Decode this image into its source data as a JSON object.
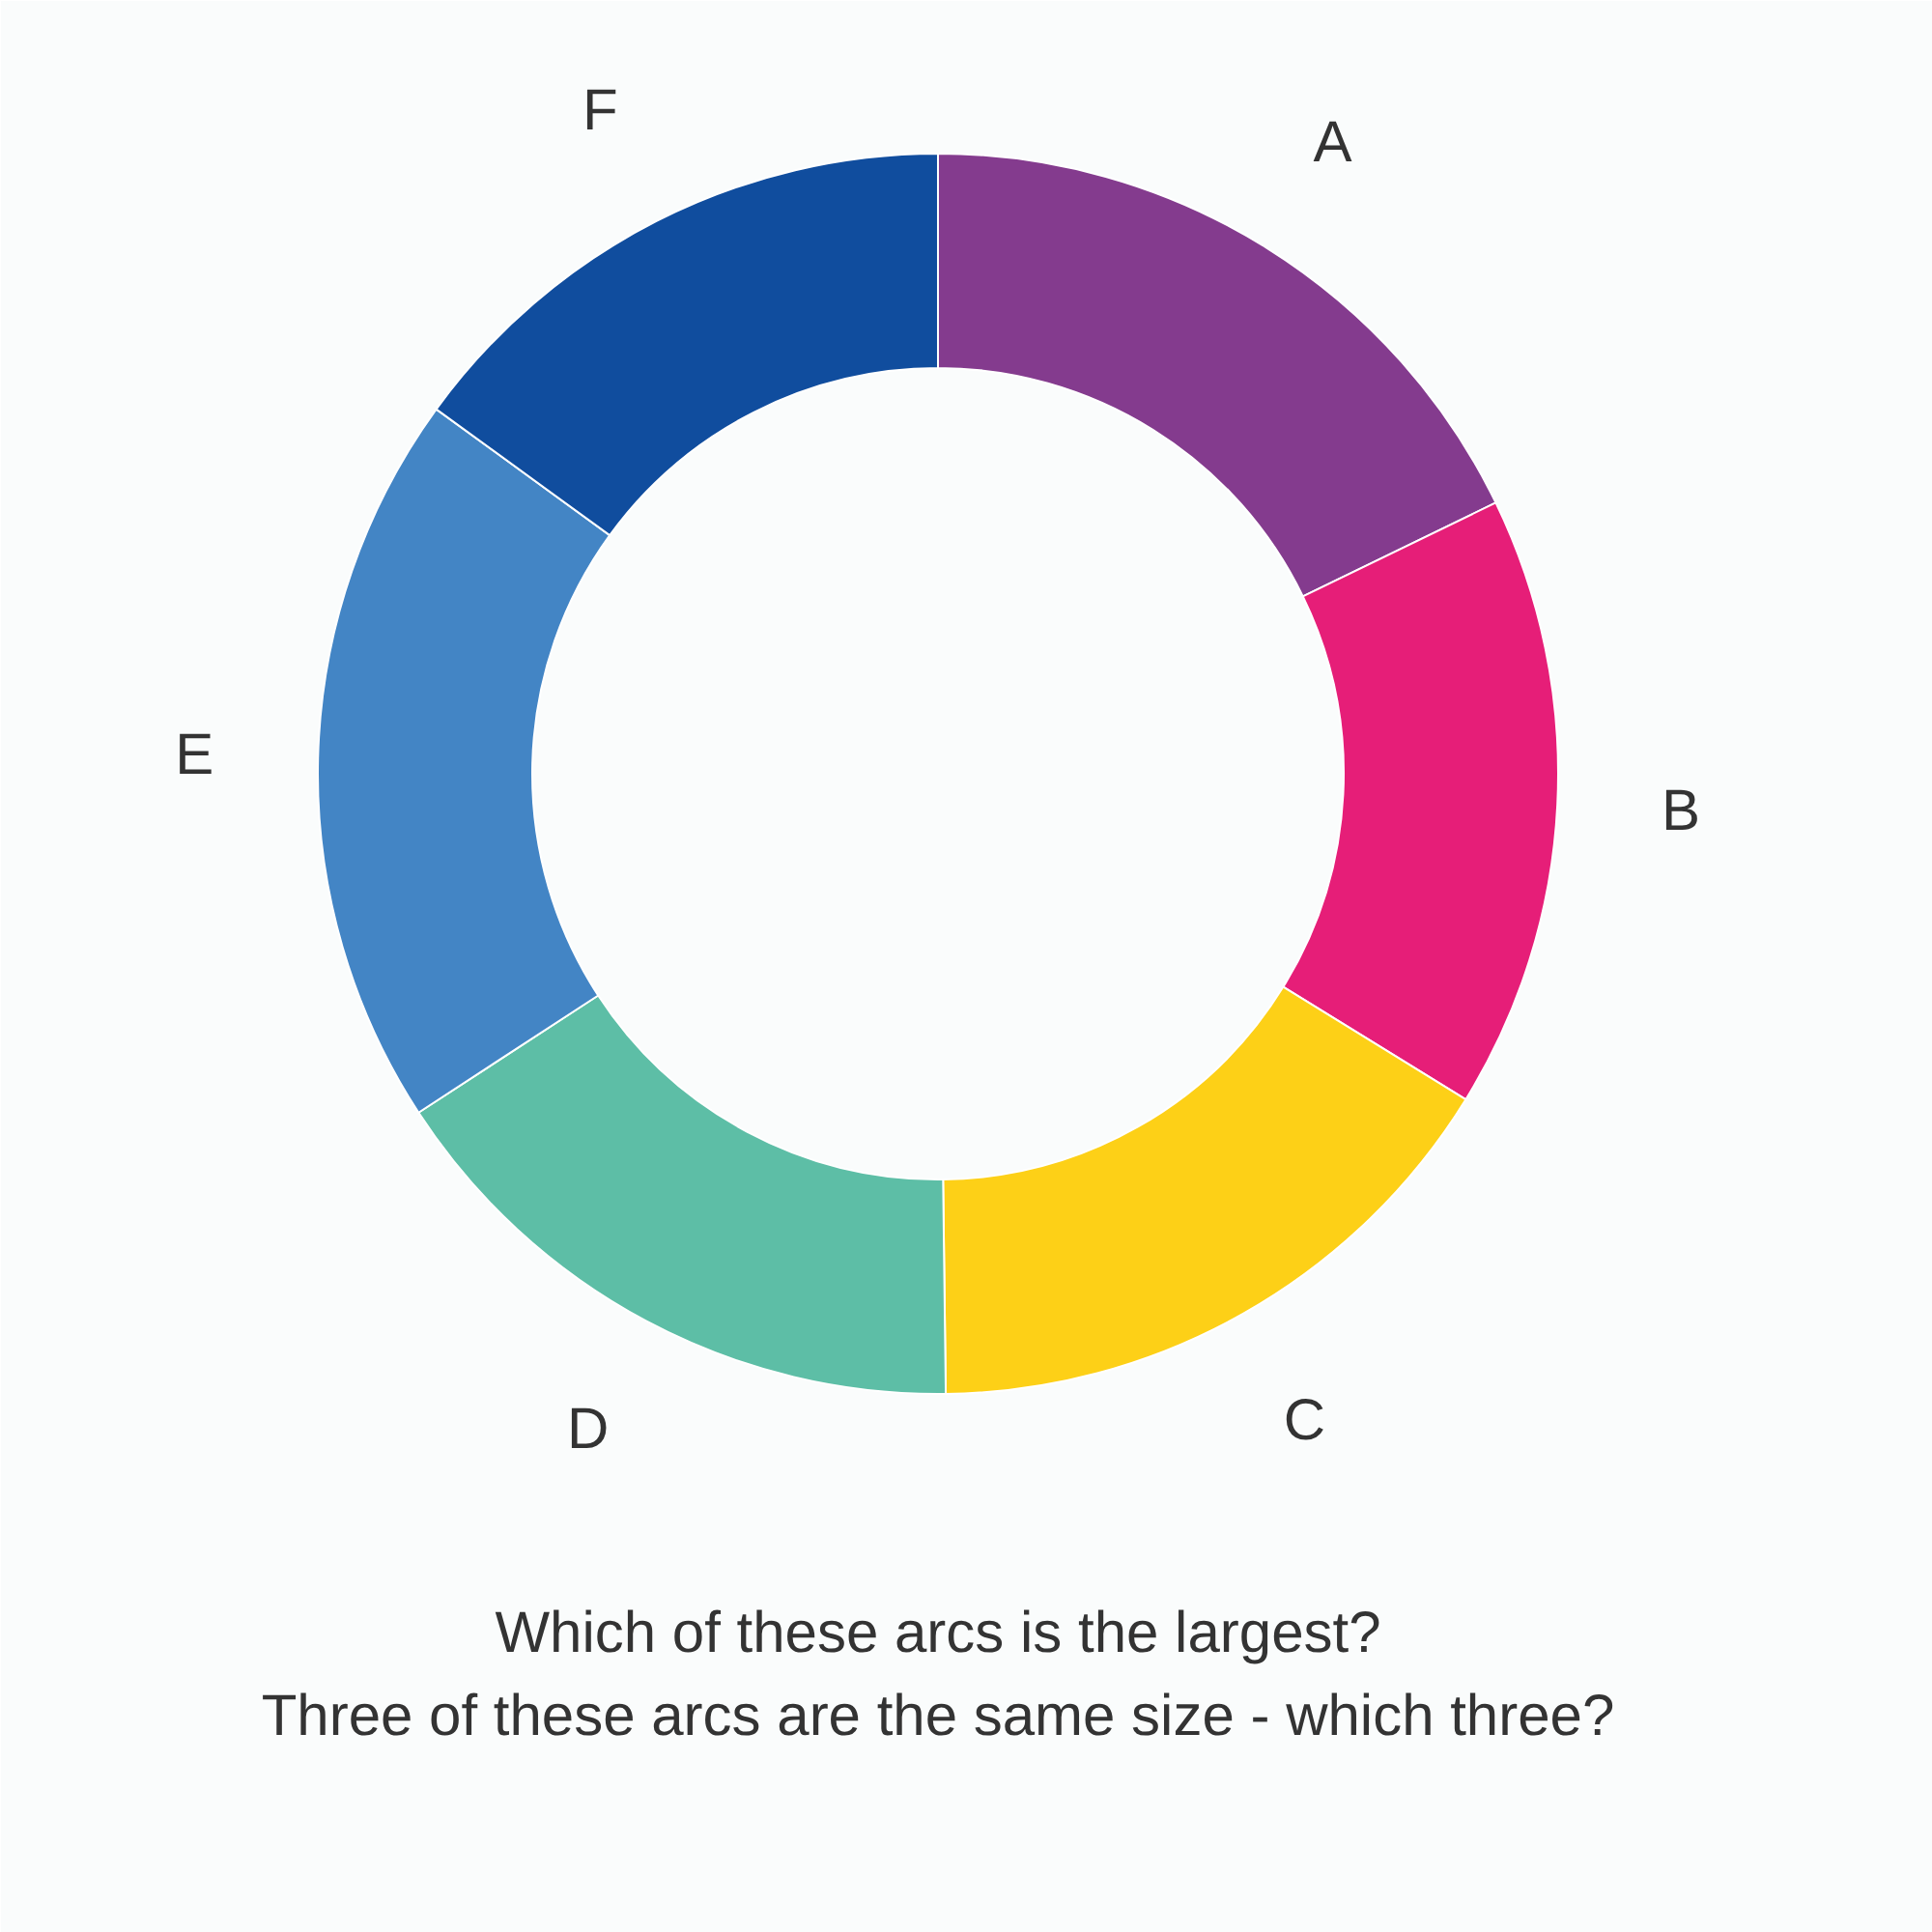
{
  "chart_data": {
    "type": "donut",
    "title": "Which of these arcs is the largest?",
    "subtitle": "Three of these arcs are the same size - which three?",
    "categories": [
      "A",
      "B",
      "C",
      "D",
      "E",
      "F"
    ],
    "values": [
      17.8,
      16,
      16,
      16,
      19.2,
      15
    ],
    "colors": [
      "#843b8e",
      "#e61e78",
      "#fdd017",
      "#5dbea6",
      "#4385c5",
      "#104d9e"
    ]
  }
}
